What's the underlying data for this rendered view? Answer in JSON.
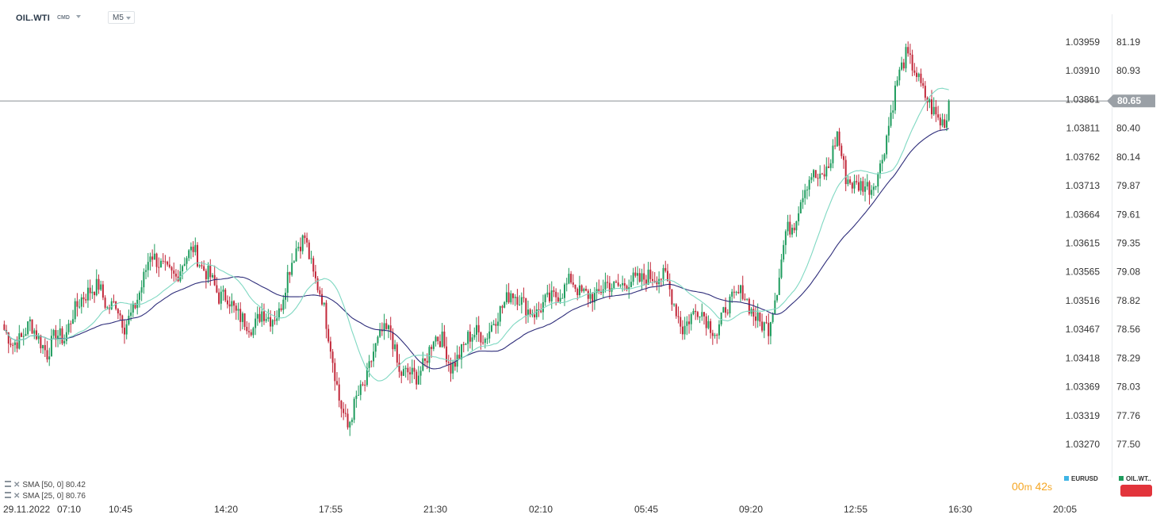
{
  "header": {
    "symbol": "OIL.WTI",
    "symbol_type": "CMD",
    "timeframe": "M5"
  },
  "left_axis": {
    "ticks": [
      "1.03959",
      "1.03910",
      "1.03861",
      "1.03811",
      "1.03762",
      "1.03713",
      "1.03664",
      "1.03615",
      "1.03565",
      "1.03516",
      "1.03467",
      "1.03418",
      "1.03369",
      "1.03319",
      "1.03270"
    ]
  },
  "right_axis": {
    "ticks": [
      "81.19",
      "80.93",
      "80.67",
      "80.40",
      "80.14",
      "79.87",
      "79.61",
      "79.35",
      "79.08",
      "78.82",
      "78.56",
      "78.29",
      "78.03",
      "77.76",
      "77.50"
    ],
    "current_price": "80.65"
  },
  "time_axis": {
    "labels": [
      "29.11.2022",
      "07:10",
      "10:45",
      "14:20",
      "17:55",
      "21:30",
      "02:10",
      "05:45",
      "09:20",
      "12:55",
      "16:30",
      "20:05"
    ]
  },
  "indicators": [
    {
      "label": "SMA",
      "params": "[50, 0]",
      "value": "80.42"
    },
    {
      "label": "SMA",
      "params": "[25, 0]",
      "value": "80.76"
    }
  ],
  "countdown": {
    "minutes": "00",
    "m_unit": "m",
    "seconds": "42",
    "s_unit": "s"
  },
  "series_tags": [
    {
      "name": "EURUSD",
      "color": "#3fb4e5"
    },
    {
      "name": "OIL.WT..",
      "color": "#1f9c5e"
    }
  ],
  "colors": {
    "bull": "#1f9c5e",
    "bear": "#c2283a",
    "sma50": "#2e2d7a",
    "sma25": "#7fd8c2",
    "price_line": "#8a9096",
    "price_badge": "#9aa0a6",
    "countdown": "#f5a623"
  },
  "chart_data": {
    "type": "candlestick",
    "instrument": "OIL.WTI",
    "timeframe": "M5",
    "ylim": [
      77.35,
      81.35
    ],
    "current_price": 80.65,
    "x_labels": [
      "29.11.2022",
      "07:10",
      "10:45",
      "14:20",
      "17:55",
      "21:30",
      "02:10",
      "05:45",
      "09:20",
      "12:55",
      "16:30",
      "20:05"
    ],
    "close_trace": [
      78.55,
      78.42,
      78.47,
      78.62,
      78.47,
      78.33,
      78.52,
      78.46,
      78.7,
      78.84,
      78.91,
      78.96,
      78.74,
      78.8,
      78.58,
      78.72,
      78.95,
      79.26,
      79.16,
      79.08,
      79.03,
      79.2,
      79.3,
      79.12,
      79.04,
      78.85,
      78.86,
      78.7,
      78.63,
      78.56,
      78.72,
      78.65,
      78.7,
      79.06,
      79.3,
      79.4,
      79.05,
      78.85,
      78.4,
      77.91,
      77.65,
      77.92,
      78.05,
      78.35,
      78.53,
      78.54,
      78.14,
      78.16,
      78.12,
      78.24,
      78.49,
      78.46,
      78.2,
      78.31,
      78.48,
      78.53,
      78.47,
      78.63,
      78.76,
      78.9,
      78.84,
      78.73,
      78.7,
      78.81,
      78.85,
      78.9,
      79.02,
      78.89,
      78.87,
      78.85,
      78.98,
      78.94,
      78.96,
      79.01,
      79.0,
      79.04,
      79.04,
      79.04,
      78.79,
      78.55,
      78.68,
      78.75,
      78.61,
      78.51,
      78.76,
      78.84,
      78.91,
      78.72,
      78.61,
      78.57,
      78.94,
      79.45,
      79.53,
      79.82,
      79.98,
      79.92,
      80.04,
      80.35,
      79.95,
      79.87,
      79.88,
      79.85,
      80.04,
      80.43,
      80.85,
      81.07,
      80.94,
      80.73,
      80.58,
      80.45,
      80.49
    ]
  }
}
